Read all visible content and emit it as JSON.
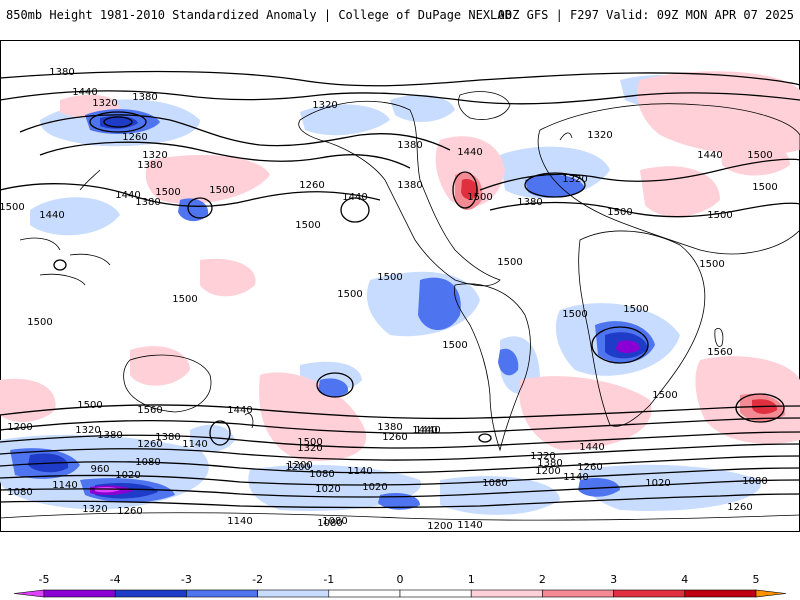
{
  "header": {
    "left_title": "850mb Height 1981-2010 Standardized Anomaly | College of DuPage NEXLAB",
    "right_title": "00Z GFS | F297 Valid: 09Z MON APR 07 2025"
  },
  "colors": {
    "n5": "#e040ff",
    "n4": "#8a00d4",
    "n3": "#1f3cc8",
    "n2": "#4f74f0",
    "n1": "#c8dcff",
    "p1": "#ffd0d8",
    "p2": "#f38a94",
    "p3": "#e03040",
    "p4": "#c00010",
    "p5": "#ff9000",
    "coast": "#000000",
    "contour": "#000000"
  },
  "colorbar": {
    "ticks": [
      "-5",
      "-4",
      "-3",
      "-2",
      "-1",
      "0",
      "1",
      "2",
      "3",
      "4",
      "5"
    ]
  },
  "contour_labels": [
    "1380",
    "1440",
    "1320",
    "1380",
    "1320",
    "1260",
    "1320",
    "1380",
    "1500",
    "1440",
    "1500",
    "1500",
    "1440",
    "1380",
    "1500",
    "1260",
    "1440",
    "1380",
    "1440",
    "1500",
    "1380",
    "1320",
    "1380",
    "1320",
    "1440",
    "1500",
    "1500",
    "1500",
    "1500",
    "1500",
    "1500",
    "1500",
    "1500",
    "1500",
    "1500",
    "1500",
    "1560",
    "1500",
    "1560",
    "1500",
    "1500",
    "1440",
    "1500",
    "1440",
    "1200",
    "1320",
    "1380",
    "1260",
    "1140",
    "1080",
    "960",
    "1020",
    "1140",
    "1080",
    "1320",
    "1500",
    "1380",
    "1260",
    "1200",
    "1140",
    "1080",
    "1020",
    "1020",
    "1440",
    "1320",
    "1380",
    "1260",
    "1200",
    "1140",
    "1080",
    "1020",
    "1080",
    "1380",
    "1320",
    "1260",
    "1140",
    "1080",
    "1200",
    "1140",
    "1080",
    "1260",
    "1440",
    "1200"
  ]
}
